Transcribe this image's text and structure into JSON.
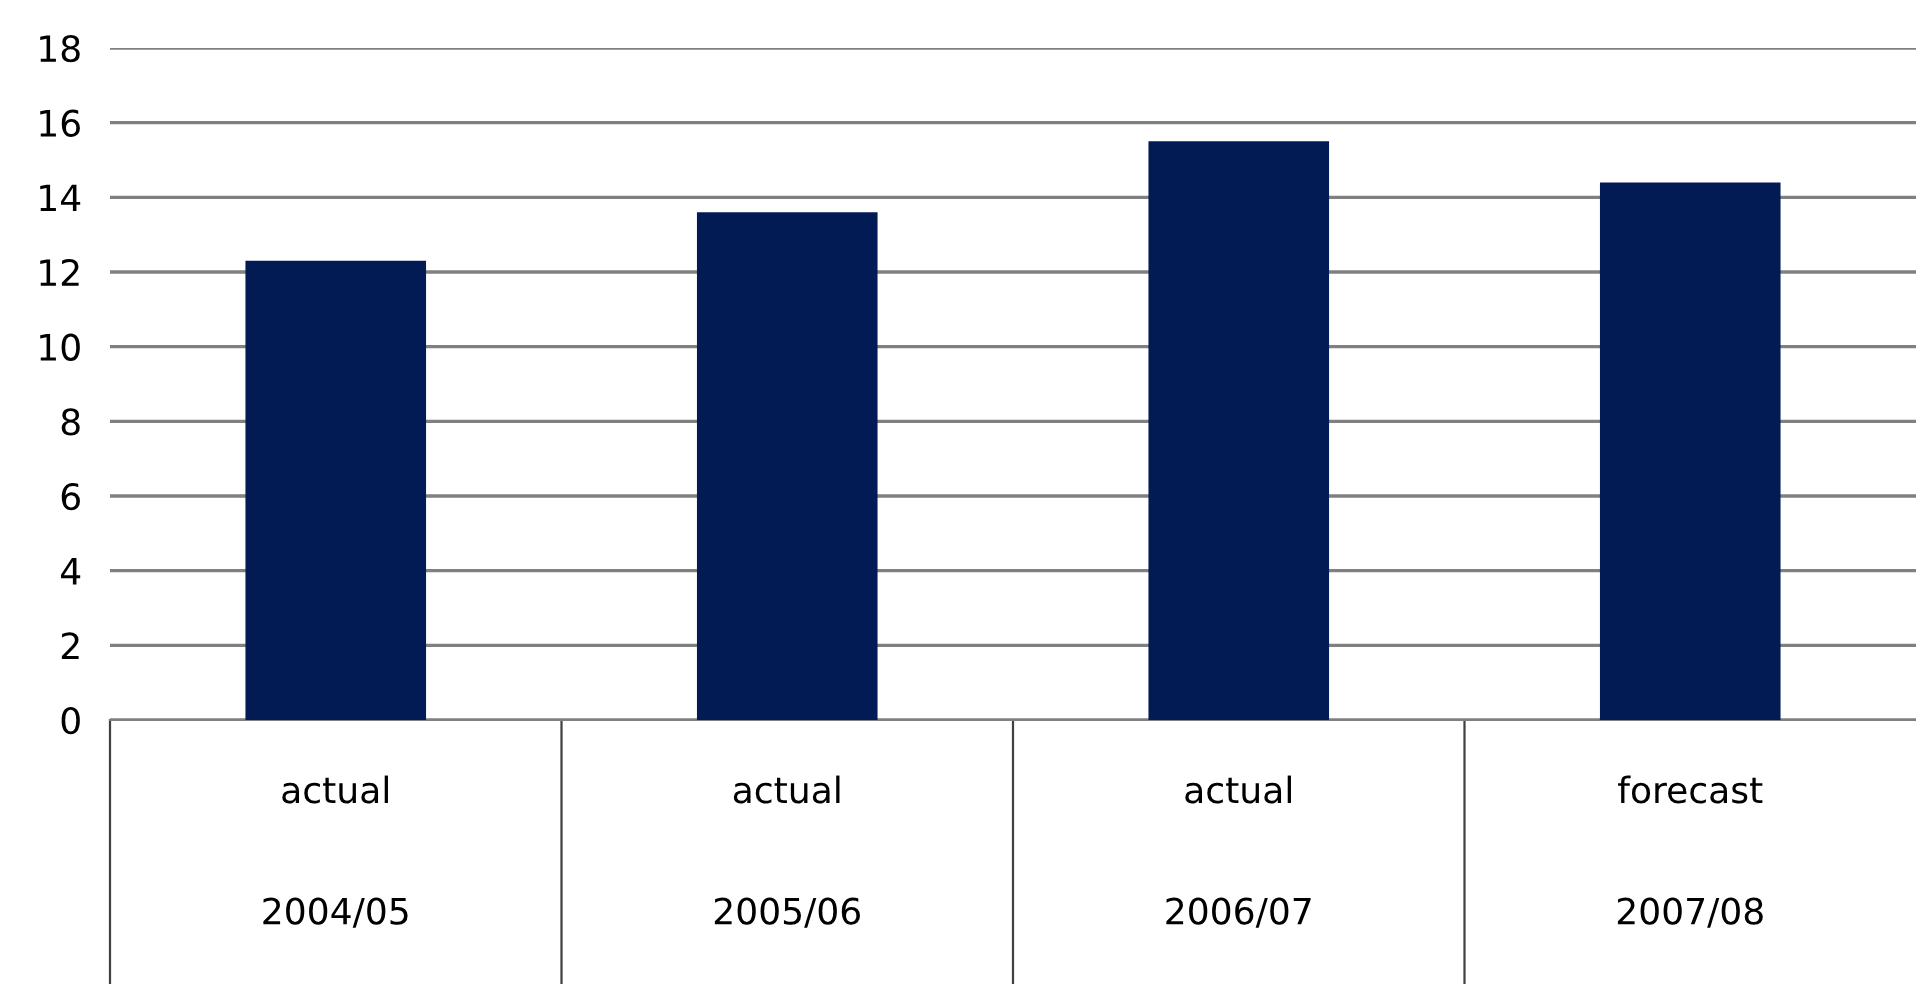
{
  "chart_data": {
    "type": "bar",
    "categories": [
      "actual\n\n\n2004/05",
      "actual\n\n\n2005/06",
      "actual\n\n\n2006/07",
      "forecast\n\n\n2007/08"
    ],
    "values": [
      12.3,
      13.6,
      15.5,
      14.4
    ],
    "color": "#021b55",
    "ylim": [
      0,
      18
    ],
    "yticks": [
      0,
      2,
      4,
      6,
      8,
      10,
      12,
      14,
      16,
      18
    ],
    "grid": "y",
    "legend": false
  }
}
